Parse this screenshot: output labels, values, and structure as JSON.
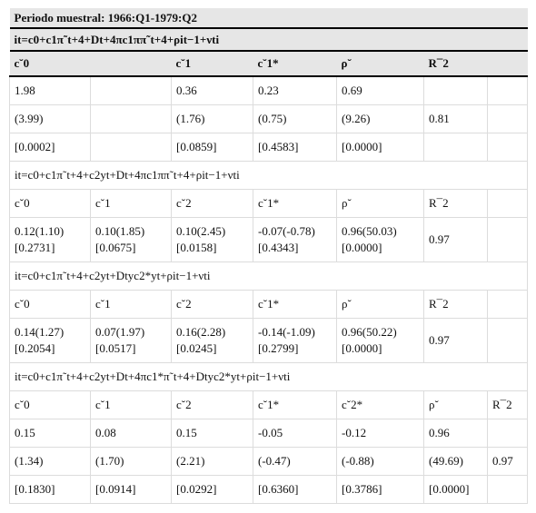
{
  "period": "Periodo muestral: 1966:Q1-1979:Q2",
  "model1": {
    "equation": "it=c0+c1π˜t+4+Dt+4πc1ππ˜t+4+ρit−1+νti",
    "headers": [
      "c˘0",
      "",
      "c˘1",
      "c˘1*",
      "ρ˘",
      "R¯2",
      ""
    ],
    "rows": [
      [
        "1.98",
        "",
        "0.36",
        "0.23",
        "0.69",
        "",
        ""
      ],
      [
        "(3.99)",
        "",
        "(1.76)",
        "(0.75)",
        "(9.26)",
        "0.81",
        ""
      ],
      [
        "[0.0002]",
        "",
        "[0.0859]",
        "[0.4583]",
        "[0.0000]",
        "",
        ""
      ]
    ]
  },
  "model2": {
    "equation": "it=c0+c1π˜t+4+c2yt+Dt+4πc1ππ˜t+4+ρit−1+νti",
    "headers": [
      "c˘0",
      "c˘1",
      "c˘2",
      "c˘1*",
      "ρ˘",
      "R¯2",
      ""
    ],
    "cells": [
      [
        "0.12(1.10)",
        "0.10(1.85)",
        "0.10(2.45)",
        "-0.07(-0.78)",
        "0.96(50.03)",
        "0.97",
        ""
      ],
      [
        "[0.2731]",
        "[0.0675]",
        "[0.0158]",
        "[0.4343]",
        "[0.0000]",
        "",
        ""
      ]
    ]
  },
  "model3": {
    "equation": "it=c0+c1π˜t+4+c2yt+Dtyc2*yt+ρit−1+νti",
    "headers": [
      "c˘0",
      "c˘1",
      "c˘2",
      "c˘1*",
      "ρ˘",
      "R¯2",
      ""
    ],
    "cells": [
      [
        "0.14(1.27)",
        "0.07(1.97)",
        "0.16(2.28)",
        "-0.14(-1.09)",
        "0.96(50.22)",
        "0.97",
        ""
      ],
      [
        "[0.2054]",
        "[0.0517]",
        "[0.0245]",
        "[0.2799]",
        "[0.0000]",
        "",
        ""
      ]
    ]
  },
  "model4": {
    "equation": "it=c0+c1π˜t+4+c2yt+Dt+4πc1*π˜t+4+Dtyc2*yt+ρit−1+νti",
    "headers": [
      "c˘0",
      "c˘1",
      "c˘2",
      "c˘1*",
      "c˘2*",
      "ρ˘",
      "R¯2"
    ],
    "rows": [
      [
        "0.15",
        "0.08",
        "0.15",
        "-0.05",
        "-0.12",
        "0.96",
        ""
      ],
      [
        "(1.34)",
        "(1.70)",
        "(2.21)",
        "(-0.47)",
        "(-0.88)",
        "(49.69)",
        "0.97"
      ],
      [
        "[0.1830]",
        "[0.0914]",
        "[0.0292]",
        "[0.6360]",
        "[0.3786]",
        "[0.0000]",
        ""
      ]
    ]
  }
}
